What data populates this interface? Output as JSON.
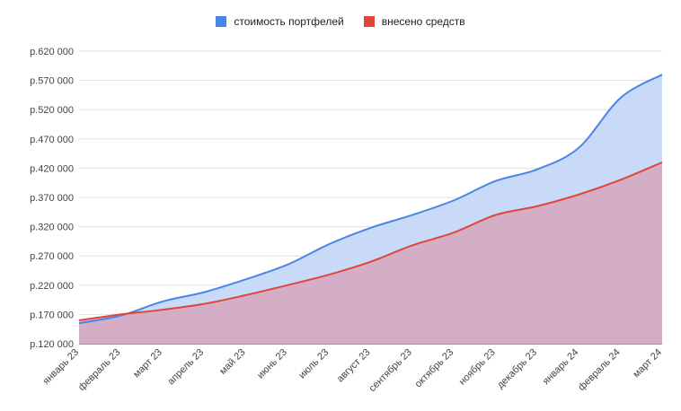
{
  "chart_data": {
    "type": "area",
    "title": "",
    "xlabel": "",
    "ylabel": "",
    "categories": [
      "январь 23",
      "февраль 23",
      "март 23",
      "апрель 23",
      "май 23",
      "июнь 23",
      "июль 23",
      "август 23",
      "сентябрь 23",
      "октябрь 23",
      "ноябрь 23",
      "декабрь 23",
      "январь 24",
      "февраль 24",
      "март 24"
    ],
    "y_ticks": [
      "р.120 000",
      "р.170 000",
      "р.220 000",
      "р.270 000",
      "р.320 000",
      "р.370 000",
      "р.420 000",
      "р.470 000",
      "р.520 000",
      "р.570 000",
      "р.620 000"
    ],
    "ylim": [
      120000,
      620000
    ],
    "grid": true,
    "legend_position": "top-center",
    "series": [
      {
        "name": "стоимость портфелей",
        "color": "#4a86e8",
        "fill": "#c9daf8",
        "values": [
          155000,
          168000,
          192000,
          208000,
          230000,
          255000,
          290000,
          318000,
          340000,
          365000,
          398000,
          418000,
          455000,
          540000,
          580000
        ]
      },
      {
        "name": "внесено средств",
        "color": "#e0453a",
        "fill": "#d5a6bd",
        "values": [
          160000,
          170000,
          178000,
          188000,
          203000,
          220000,
          238000,
          260000,
          288000,
          310000,
          340000,
          355000,
          375000,
          400000,
          430000
        ]
      }
    ]
  }
}
